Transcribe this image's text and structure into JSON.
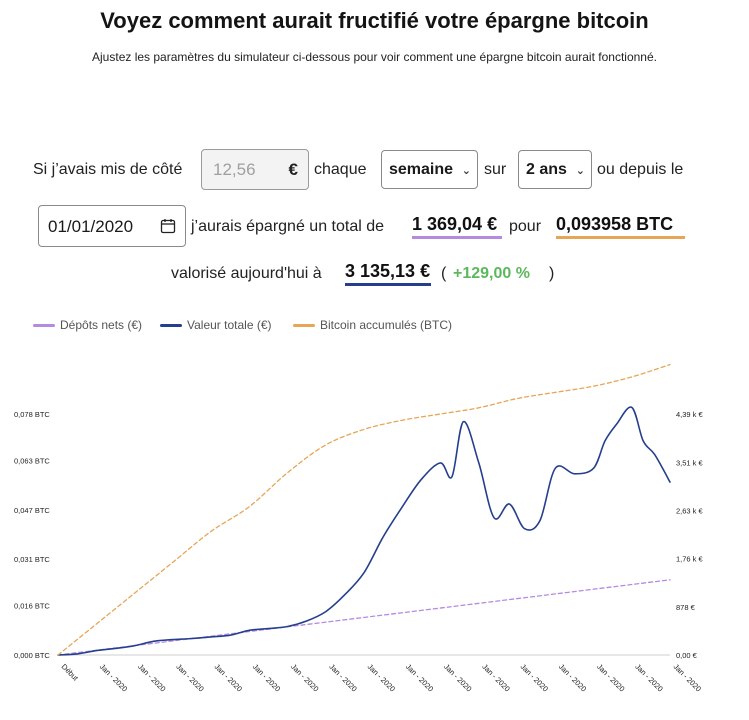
{
  "header": {
    "title": "Voyez comment aurait fructifié votre épargne bitcoin",
    "subtitle": "Ajustez les paramètres du simulateur ci-dessous pour voir comment une épargne bitcoin aurait fonctionné."
  },
  "form": {
    "text_intro": "Si j’avais mis de côté",
    "amount_value": "12,56",
    "currency": "€",
    "text_each": "chaque",
    "frequency": "semaine",
    "text_over": "sur",
    "duration": "2 ans",
    "text_since": "ou depuis le",
    "start_date": "01/01/2020",
    "text_saved": "j’aurais épargné un total de",
    "total_saved": "1 369,04 €",
    "text_for": "pour",
    "btc_total": "0,093958 BTC",
    "text_valued": "valorisé aujourd'hui à",
    "value_today": "3 135,13 €",
    "paren_open": "(",
    "gain_pct": "+129,00 %",
    "paren_close": ")"
  },
  "colors": {
    "deposits": "#b48be0",
    "value": "#253f8e",
    "btc": "#e5a657"
  },
  "chart_data": {
    "type": "line",
    "legend": [
      "Dépôts nets (€)",
      "Valeur totale (€)",
      "Bitcoin accumulés (BTC)"
    ],
    "x_labels": [
      "Début",
      "Jan - 2020",
      "Jan - 2020",
      "Jan - 2020",
      "Jan - 2020",
      "Jan - 2020",
      "Jan - 2020",
      "Jan - 2020",
      "Jan - 2020",
      "Jan - 2020",
      "Jan - 2020",
      "Jan - 2020",
      "Jan - 2020",
      "Jan - 2020",
      "Jan - 2020",
      "Jan - 2020",
      "Jan - 2020"
    ],
    "left_axis_labels": [
      "0,000 BTC",
      "0,016 BTC",
      "0,031 BTC",
      "0,047 BTC",
      "0,063 BTC",
      "0,078 BTC"
    ],
    "left_axis_values": [
      0,
      0.016,
      0.031,
      0.047,
      0.063,
      0.078
    ],
    "right_axis_labels": [
      "0,00 €",
      "878 €",
      "1,76 k €",
      "2,63 k €",
      "3,51 k €",
      "4,39 k €"
    ],
    "right_axis_values": [
      0,
      878,
      1760,
      2630,
      3510,
      4390
    ],
    "series": [
      {
        "name": "Dépôts nets (€)",
        "axis": "right",
        "style": "dashed",
        "points": [
          [
            0,
            0
          ],
          [
            16,
            1369
          ]
        ]
      },
      {
        "name": "Valeur totale (€)",
        "axis": "right",
        "style": "solid",
        "points": [
          [
            0,
            0
          ],
          [
            0.5,
            20
          ],
          [
            1,
            80
          ],
          [
            1.5,
            120
          ],
          [
            2,
            170
          ],
          [
            2.5,
            250
          ],
          [
            3,
            280
          ],
          [
            3.5,
            300
          ],
          [
            4,
            330
          ],
          [
            4.5,
            360
          ],
          [
            5,
            450
          ],
          [
            5.5,
            480
          ],
          [
            6,
            520
          ],
          [
            6.5,
            620
          ],
          [
            7,
            790
          ],
          [
            7.5,
            1100
          ],
          [
            8,
            1500
          ],
          [
            8.5,
            2150
          ],
          [
            9,
            2700
          ],
          [
            9.5,
            3200
          ],
          [
            10,
            3500
          ],
          [
            10.3,
            3250
          ],
          [
            10.6,
            4250
          ],
          [
            11,
            3500
          ],
          [
            11.4,
            2500
          ],
          [
            11.8,
            2750
          ],
          [
            12.2,
            2300
          ],
          [
            12.6,
            2450
          ],
          [
            13,
            3400
          ],
          [
            13.5,
            3300
          ],
          [
            14,
            3400
          ],
          [
            14.3,
            3900
          ],
          [
            14.6,
            4200
          ],
          [
            15,
            4510
          ],
          [
            15.3,
            3900
          ],
          [
            15.6,
            3650
          ],
          [
            16,
            3150
          ]
        ]
      },
      {
        "name": "Bitcoin accumulés (BTC)",
        "axis": "left",
        "style": "dashed",
        "points": [
          [
            0,
            0
          ],
          [
            1,
            0.01
          ],
          [
            2,
            0.02
          ],
          [
            3,
            0.03
          ],
          [
            4,
            0.04
          ],
          [
            5,
            0.048
          ],
          [
            6,
            0.059
          ],
          [
            7,
            0.068
          ],
          [
            8,
            0.073
          ],
          [
            9,
            0.076
          ],
          [
            10,
            0.078
          ],
          [
            11,
            0.08
          ],
          [
            12,
            0.083
          ],
          [
            13,
            0.085
          ],
          [
            14,
            0.087
          ],
          [
            15,
            0.09
          ],
          [
            16,
            0.094
          ]
        ]
      }
    ]
  }
}
